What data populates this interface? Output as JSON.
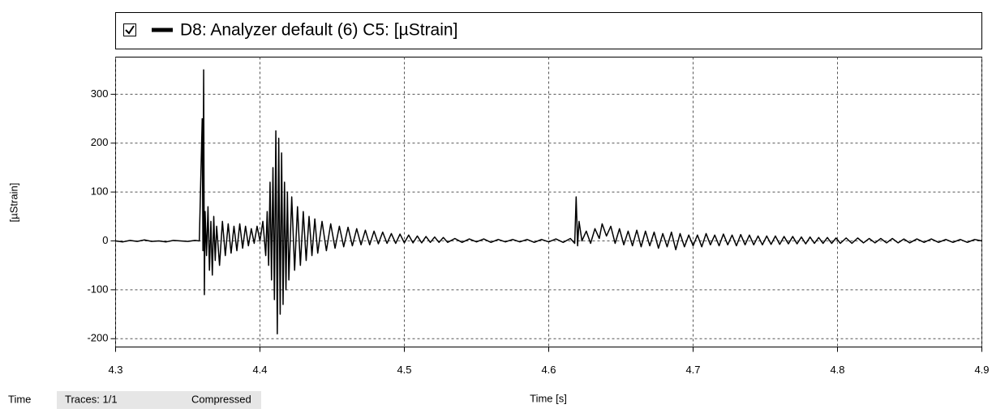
{
  "chart_data": {
    "type": "line",
    "legend_title": "D8: Analyzer default (6)  C5:  [µStrain]",
    "xlabel": "Time [s]",
    "ylabel": "[µStrain]",
    "status": [
      "Time",
      "Traces: 1/1",
      "Compressed"
    ],
    "x": [
      4.3,
      4.305,
      4.31,
      4.315,
      4.32,
      4.325,
      4.33,
      4.335,
      4.34,
      4.345,
      4.35,
      4.355,
      4.358,
      4.36,
      4.3605,
      4.361,
      4.3615,
      4.362,
      4.363,
      4.364,
      4.365,
      4.366,
      4.367,
      4.368,
      4.369,
      4.37,
      4.372,
      4.374,
      4.376,
      4.378,
      4.38,
      4.382,
      4.384,
      4.386,
      4.388,
      4.39,
      4.392,
      4.394,
      4.396,
      4.398,
      4.4,
      4.402,
      4.404,
      4.405,
      4.406,
      4.407,
      4.408,
      4.409,
      4.41,
      4.411,
      4.412,
      4.413,
      4.414,
      4.415,
      4.416,
      4.417,
      4.418,
      4.419,
      4.42,
      4.422,
      4.424,
      4.426,
      4.428,
      4.43,
      4.432,
      4.434,
      4.436,
      4.438,
      4.44,
      4.443,
      4.446,
      4.449,
      4.452,
      4.455,
      4.458,
      4.461,
      4.464,
      4.467,
      4.47,
      4.473,
      4.476,
      4.479,
      4.482,
      4.485,
      4.488,
      4.491,
      4.494,
      4.497,
      4.5,
      4.503,
      4.506,
      4.509,
      4.512,
      4.515,
      4.518,
      4.521,
      4.524,
      4.527,
      4.53,
      4.535,
      4.54,
      4.545,
      4.55,
      4.555,
      4.56,
      4.565,
      4.57,
      4.575,
      4.58,
      4.585,
      4.59,
      4.595,
      4.6,
      4.605,
      4.61,
      4.615,
      4.618,
      4.619,
      4.62,
      4.621,
      4.623,
      4.626,
      4.629,
      4.632,
      4.635,
      4.637,
      4.64,
      4.643,
      4.646,
      4.649,
      4.652,
      4.655,
      4.658,
      4.661,
      4.664,
      4.667,
      4.67,
      4.673,
      4.676,
      4.679,
      4.682,
      4.685,
      4.688,
      4.691,
      4.694,
      4.697,
      4.7,
      4.703,
      4.706,
      4.709,
      4.712,
      4.715,
      4.718,
      4.721,
      4.724,
      4.727,
      4.73,
      4.733,
      4.736,
      4.739,
      4.742,
      4.745,
      4.748,
      4.751,
      4.754,
      4.757,
      4.76,
      4.763,
      4.766,
      4.769,
      4.772,
      4.775,
      4.778,
      4.781,
      4.784,
      4.787,
      4.79,
      4.793,
      4.796,
      4.799,
      4.802,
      4.806,
      4.81,
      4.814,
      4.818,
      4.822,
      4.826,
      4.83,
      4.834,
      4.838,
      4.842,
      4.846,
      4.85,
      4.855,
      4.86,
      4.865,
      4.87,
      4.875,
      4.88,
      4.885,
      4.89,
      4.895,
      4.9
    ],
    "series": [
      {
        "name": "D8: Analyzer default (6)  C5:  [µStrain]",
        "color": "#000000",
        "values": [
          0,
          -2,
          1,
          -1,
          2,
          -1,
          0,
          -2,
          1,
          0,
          -1,
          1,
          0,
          250,
          -20,
          350,
          -110,
          60,
          -30,
          70,
          -60,
          40,
          -70,
          50,
          -40,
          30,
          -50,
          40,
          -30,
          35,
          -25,
          30,
          -20,
          35,
          -15,
          30,
          -10,
          25,
          -5,
          30,
          0,
          40,
          -30,
          60,
          -50,
          120,
          -80,
          150,
          -120,
          225,
          -190,
          210,
          -150,
          180,
          -130,
          120,
          -100,
          100,
          -80,
          90,
          -60,
          70,
          -50,
          60,
          -40,
          50,
          -30,
          45,
          -25,
          40,
          -20,
          35,
          -15,
          30,
          -12,
          28,
          -10,
          25,
          -8,
          22,
          -8,
          20,
          -6,
          18,
          -5,
          15,
          -5,
          14,
          -4,
          12,
          -4,
          10,
          -4,
          9,
          -3,
          8,
          -3,
          7,
          -3,
          5,
          -3,
          4,
          -2,
          4,
          -3,
          3,
          -2,
          3,
          -2,
          3,
          -3,
          3,
          -2,
          4,
          -3,
          5,
          -5,
          90,
          -10,
          40,
          0,
          20,
          -5,
          25,
          5,
          35,
          10,
          30,
          -5,
          25,
          -8,
          20,
          -10,
          22,
          -12,
          20,
          -10,
          18,
          -15,
          15,
          -12,
          18,
          -18,
          15,
          -12,
          12,
          -10,
          12,
          -12,
          15,
          -8,
          12,
          -10,
          14,
          -8,
          12,
          -10,
          13,
          -8,
          12,
          -8,
          10,
          -8,
          10,
          -7,
          10,
          -7,
          9,
          -6,
          9,
          -6,
          8,
          -6,
          8,
          -5,
          7,
          -5,
          7,
          -5,
          6,
          -5,
          6,
          -5,
          6,
          -4,
          5,
          -4,
          5,
          -4,
          5,
          -4,
          4,
          -4,
          4,
          -3,
          4,
          -3,
          3,
          -3,
          3,
          -3,
          3,
          0
        ]
      }
    ],
    "xlim": [
      4.3,
      4.9
    ],
    "ylim": [
      -217,
      376
    ],
    "xticks": [
      4.3,
      4.4,
      4.5,
      4.6,
      4.7,
      4.8,
      4.9
    ],
    "yticks": [
      -200,
      -100,
      0,
      100,
      200,
      300
    ],
    "grid": true
  }
}
